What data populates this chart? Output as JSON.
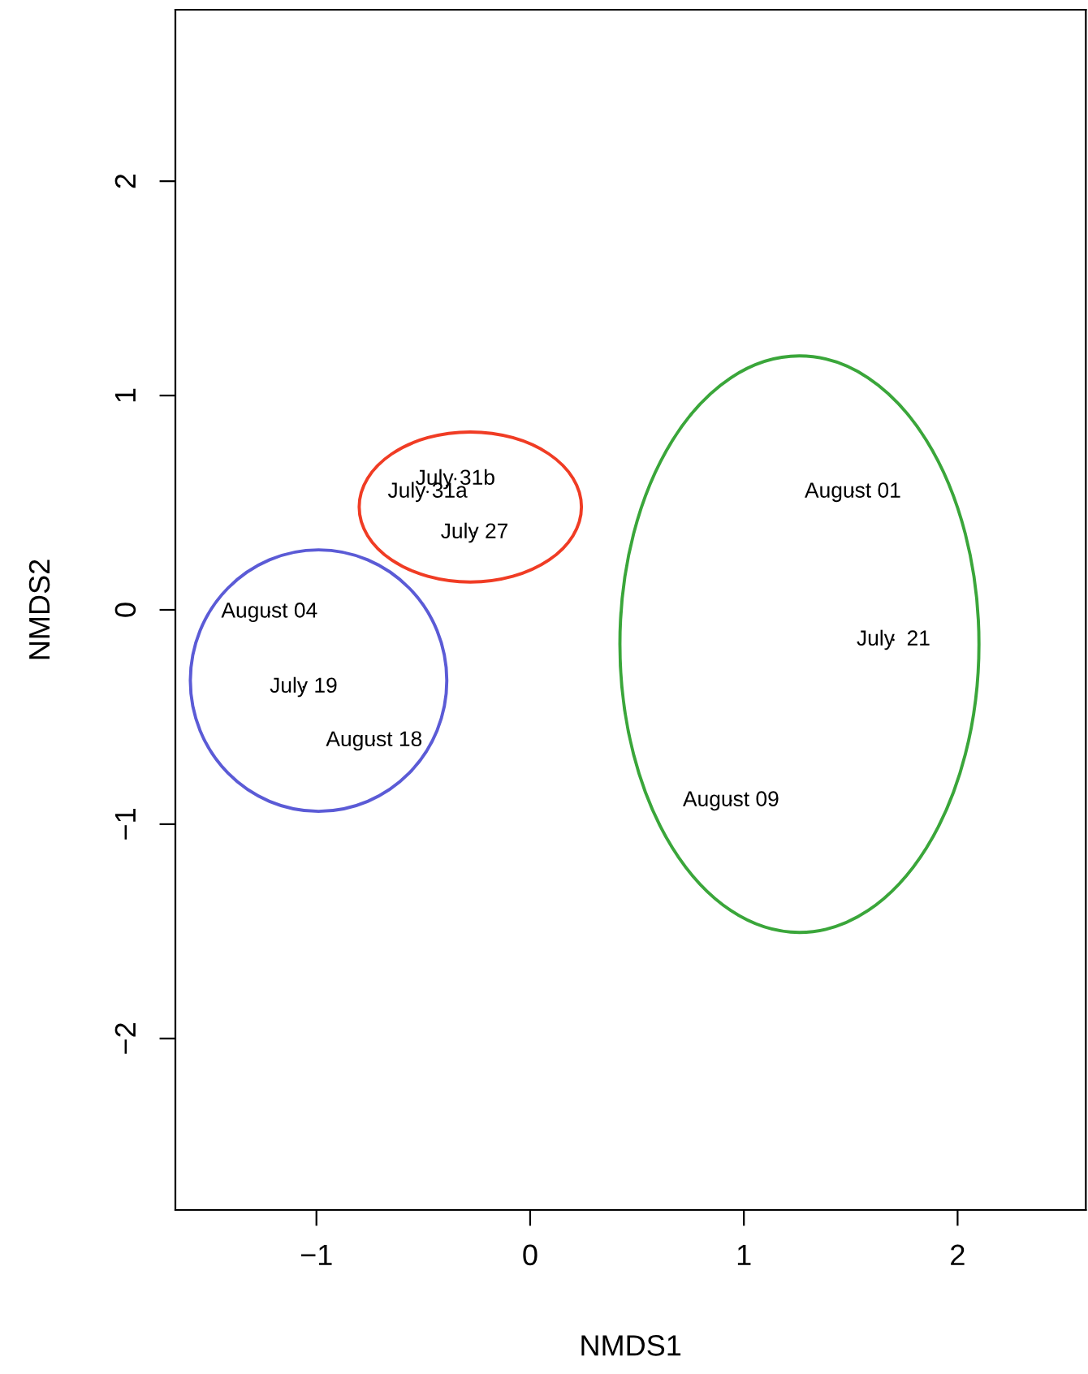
{
  "chart_data": {
    "type": "scatter",
    "xlabel": "NMDS1",
    "ylabel": "NMDS2",
    "xlim": [
      -1.66,
      2.6
    ],
    "ylim": [
      -2.8,
      2.8
    ],
    "xticks": [
      {
        "value": -1,
        "label": "−1"
      },
      0,
      1,
      2
    ],
    "yticks": [
      {
        "value": -2,
        "label": "−2"
      },
      {
        "value": -1,
        "label": "−1"
      },
      0,
      1,
      2
    ],
    "grid": false,
    "legend": false,
    "series": [
      {
        "color": "#000000",
        "x": [
          -0.35,
          -0.48,
          -0.26,
          -1.22,
          -1.06,
          -0.73,
          1.51,
          1.7,
          0.94
        ],
        "values": [
          0.61,
          0.55,
          0.36,
          -0.01,
          -0.36,
          -0.61,
          0.55,
          -0.14,
          -0.89
        ],
        "value_labels": [
          "July 31b",
          "July 31a",
          "July 27",
          "August 04",
          "July 19",
          "August 18",
          "August 01",
          "July  21",
          "August 09"
        ]
      }
    ]
  }
}
